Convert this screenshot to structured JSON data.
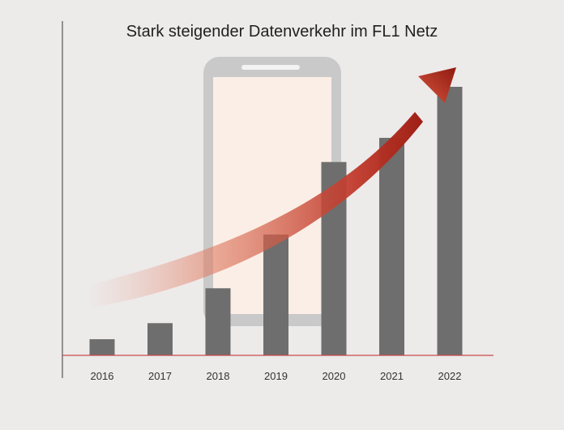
{
  "chart_data": {
    "type": "bar",
    "title": "Stark steigender Datenverkehr im FL1 Netz",
    "categories": [
      "2016",
      "2017",
      "2018",
      "2019",
      "2020",
      "2021",
      "2022"
    ],
    "values": [
      6,
      12,
      25,
      45,
      72,
      81,
      100
    ],
    "ylim": [
      0,
      100
    ],
    "xlabel": "",
    "ylabel": "",
    "grid": false,
    "y_tick_labels": false,
    "decoration": [
      "smartphone-illustration",
      "rising-trend-arrow"
    ],
    "colors": {
      "bar": "#6e6e6e",
      "baseline": "#cc4a4a",
      "arrow": "#c0392b",
      "phone_frame": "#c9c9c9",
      "phone_screen": "#fbeee6",
      "background": "#edeaea"
    }
  }
}
